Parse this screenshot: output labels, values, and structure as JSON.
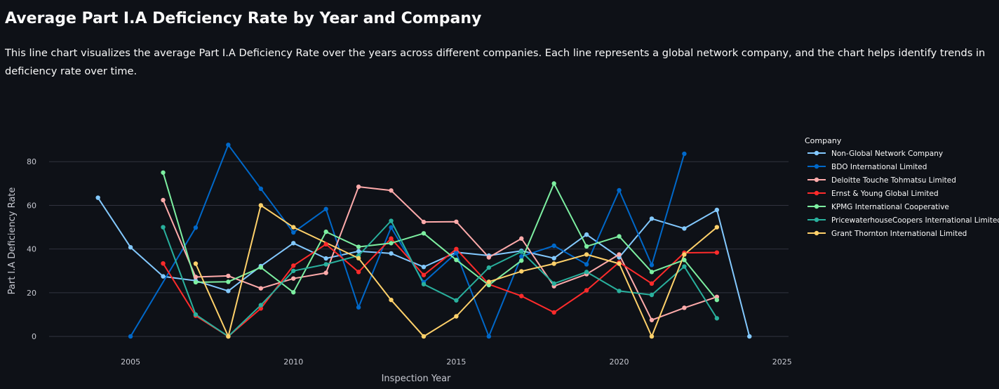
{
  "page": {
    "title": "Average Part I.A Deficiency Rate by Year and Company",
    "description": "This line chart visualizes the average Part I.A Deficiency Rate over the years across different companies. Each line represents a global network company, and the chart helps identify trends in deficiency rate over time."
  },
  "chart_data": {
    "type": "line",
    "xlabel": "Inspection Year",
    "ylabel": "Part I.A Deficiency Rate",
    "xlim": [
      2002.5,
      2025.2
    ],
    "ylim": [
      -8,
      91
    ],
    "x_ticks": [
      2005,
      2010,
      2015,
      2020,
      2025
    ],
    "y_ticks": [
      0,
      20,
      40,
      60,
      80
    ],
    "grid": "horizontal",
    "legend_title": "Company",
    "legend_position": "right",
    "background_color": "#0e1117",
    "grid_color": "#31333f",
    "series": [
      {
        "name": "Non-Global Network Company",
        "color": "#83c9ff",
        "x": [
          2004,
          2005,
          2006,
          2007,
          2008,
          2009,
          2010,
          2011,
          2012,
          2013,
          2014,
          2015,
          2016,
          2017,
          2018,
          2019,
          2020,
          2021,
          2022,
          2023,
          2024
        ],
        "y": [
          63.5,
          40.8,
          27.5,
          25.5,
          20.8,
          32.2,
          42.7,
          35.7,
          39.0,
          38.0,
          31.8,
          38.5,
          37.0,
          39.2,
          35.8,
          46.6,
          36.2,
          53.9,
          49.4,
          57.9,
          0
        ]
      },
      {
        "name": "BDO International Limited",
        "color": "#0068c9",
        "x": [
          2005,
          2007,
          2008,
          2009,
          2010,
          2011,
          2012,
          2013,
          2014,
          2015,
          2016,
          2017,
          2018,
          2019,
          2020,
          2021,
          2022
        ],
        "y": [
          0,
          49.8,
          87.7,
          67.6,
          47.6,
          58.3,
          13.3,
          49.9,
          24.8,
          38.2,
          0,
          36.6,
          41.5,
          33.0,
          66.9,
          32.7,
          83.6
        ]
      },
      {
        "name": "Deloitte Touche Tohmatsu Limited",
        "color": "#ffabab",
        "x": [
          2006,
          2007,
          2008,
          2009,
          2010,
          2011,
          2012,
          2013,
          2014,
          2015,
          2016,
          2017,
          2018,
          2019,
          2020,
          2021,
          2022,
          2023
        ],
        "y": [
          62.4,
          27.2,
          27.7,
          22.0,
          26.5,
          29.1,
          68.5,
          66.8,
          52.4,
          52.5,
          36.2,
          44.8,
          23.0,
          28.5,
          37.5,
          7.5,
          13.1,
          18.1
        ]
      },
      {
        "name": "Ernst & Young Global Limited",
        "color": "#ff2b2b",
        "x": [
          2006,
          2007,
          2008,
          2009,
          2010,
          2011,
          2012,
          2013,
          2014,
          2015,
          2016,
          2017,
          2018,
          2019,
          2020,
          2021,
          2022,
          2023
        ],
        "y": [
          33.4,
          9.5,
          0,
          12.8,
          32.4,
          42.2,
          29.5,
          44.8,
          28.1,
          40.0,
          23.9,
          18.5,
          11.0,
          21.1,
          33.9,
          24.2,
          38.3,
          38.4
        ]
      },
      {
        "name": "KPMG International Cooperative",
        "color": "#7defa1",
        "x": [
          2006,
          2007,
          2008,
          2009,
          2010,
          2011,
          2012,
          2013,
          2014,
          2015,
          2016,
          2017,
          2018,
          2019,
          2020,
          2021,
          2022,
          2023
        ],
        "y": [
          75.0,
          24.8,
          25.0,
          31.6,
          20.2,
          47.9,
          41.0,
          42.7,
          47.2,
          35.0,
          23.5,
          34.7,
          70.0,
          41.2,
          45.8,
          29.5,
          35.0,
          16.7
        ]
      },
      {
        "name": "PricewaterhouseCoopers International Limited",
        "color": "#29b09d",
        "x": [
          2006,
          2007,
          2008,
          2009,
          2010,
          2011,
          2012,
          2013,
          2014,
          2015,
          2016,
          2017,
          2018,
          2019,
          2020,
          2021,
          2022,
          2023
        ],
        "y": [
          50.0,
          10.0,
          0,
          14.3,
          30.0,
          33.0,
          37.0,
          52.9,
          23.9,
          16.5,
          31.5,
          38.8,
          24.2,
          29.5,
          20.8,
          19.0,
          32.0,
          8.3
        ]
      },
      {
        "name": "Grant Thornton International Limited",
        "color": "#ffd16a",
        "x": [
          2007,
          2008,
          2009,
          2010,
          2012,
          2013,
          2014,
          2015,
          2016,
          2017,
          2018,
          2019,
          2020,
          2021,
          2022,
          2023
        ],
        "y": [
          33.3,
          0,
          60.0,
          50.0,
          35.8,
          16.7,
          0,
          9.2,
          25.0,
          29.8,
          33.3,
          37.5,
          33.3,
          0,
          37.5,
          50.0
        ]
      }
    ]
  }
}
